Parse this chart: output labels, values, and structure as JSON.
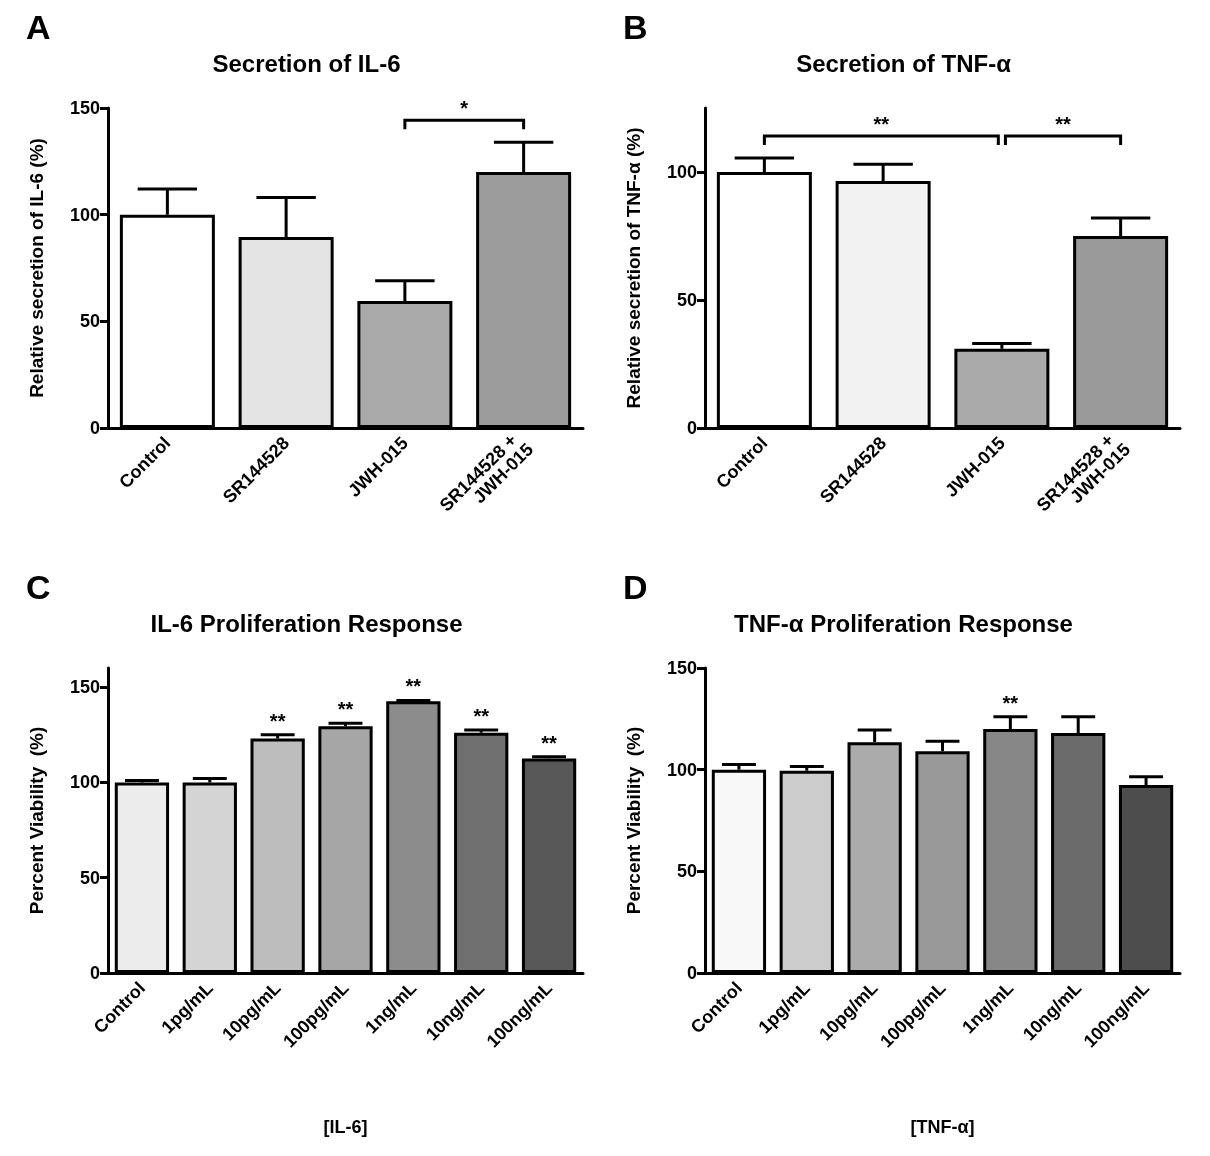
{
  "chart_data": [
    {
      "type": "bar",
      "title": "Secretion of IL-6",
      "ylabel": "Relative secretion of IL-6 (%)",
      "categories": [
        "Control",
        "SR144528",
        "JWH-015",
        "SR144528 + JWH-015"
      ],
      "values": [
        100,
        89.5,
        59.5,
        120
      ],
      "colors": [
        "#ffffff",
        "#e4e4e4",
        "#aaaaaa",
        "#9c9c9c"
      ],
      "errors": [
        [
          100,
          112
        ],
        [
          89.5,
          108
        ],
        [
          59.5,
          69
        ],
        [
          120,
          134
        ]
      ],
      "ylim": [
        0,
        150
      ],
      "yticks": [
        0,
        50,
        100,
        150
      ],
      "annotations": [
        "A",
        "*"
      ]
    },
    {
      "type": "bar",
      "title": "Secretion of TNF-α",
      "ylabel": "Relative secretion of TNF-α (%)",
      "categories": [
        "Control",
        "SR144528",
        "JWH-015",
        "SR144528 + JWH-015"
      ],
      "values": [
        100,
        96.5,
        31,
        75
      ],
      "colors": [
        "#ffffff",
        "#f2f2f2",
        "#aaaaaa",
        "#9a9a9a"
      ],
      "errors": [
        [
          100,
          105.5
        ],
        [
          96.5,
          103
        ],
        [
          31,
          33
        ],
        [
          75,
          82
        ]
      ],
      "ylim": [
        0,
        125
      ],
      "yticks": [
        0,
        50,
        100
      ],
      "annotations": [
        "B",
        "**",
        "**"
      ]
    },
    {
      "type": "bar",
      "title": "IL-6 Proliferation Response",
      "xlabel": "[IL-6]",
      "ylabel": "Percent Viability  (%)",
      "categories": [
        "Control",
        "1pg/mL",
        "10pg/mL",
        "100pg/mL",
        "1ng/mL",
        "10ng/mL",
        "100ng/mL"
      ],
      "values": [
        100,
        100,
        123,
        129.5,
        142.5,
        126,
        112.5
      ],
      "colors": [
        "#ececec",
        "#d4d4d4",
        "#bdbdbd",
        "#a6a6a6",
        "#8c8c8c",
        "#707070",
        "#575757"
      ],
      "errors": [
        [
          100,
          101
        ],
        [
          100,
          102
        ],
        [
          123,
          125
        ],
        [
          129.5,
          131
        ],
        [
          142.5,
          143
        ],
        [
          126,
          127.5
        ],
        [
          112.5,
          113.5
        ]
      ],
      "ylim": [
        0,
        160
      ],
      "yticks": [
        0,
        50,
        100,
        150
      ],
      "annotations": [
        "C",
        {
          "text": "**",
          "x": "10pg/mL",
          "y": 125
        },
        {
          "text": "**",
          "x": "100pg/mL",
          "y": 131
        },
        {
          "text": "**",
          "x": "1ng/mL",
          "y": 143
        },
        {
          "text": "**",
          "x": "10ng/mL",
          "y": 127.5
        },
        {
          "text": "**",
          "x": "100ng/mL",
          "y": 113.5
        }
      ]
    },
    {
      "type": "bar",
      "title": "TNF-α Proliferation Response",
      "xlabel": "[TNF-α]",
      "ylabel": "Percent Viability  (%)",
      "categories": [
        "Control",
        "1pg/mL",
        "10pg/mL",
        "100pg/mL",
        "1ng/mL",
        "10ng/mL",
        "100ng/mL"
      ],
      "values": [
        100,
        99.5,
        113.5,
        109,
        120,
        118,
        92.5
      ],
      "colors": [
        "#f8f8f8",
        "#cccccc",
        "#ababab",
        "#999999",
        "#878787",
        "#6b6b6b",
        "#4d4d4d"
      ],
      "errors": [
        [
          100,
          102.5
        ],
        [
          99.5,
          101.5
        ],
        [
          113.5,
          119.5
        ],
        [
          109,
          114
        ],
        [
          120,
          126
        ],
        [
          118,
          126
        ],
        [
          92.5,
          96.5
        ]
      ],
      "ylim": [
        0,
        150
      ],
      "yticks": [
        0,
        50,
        100,
        150
      ],
      "annotations": [
        "D",
        {
          "text": "**",
          "x": "1ng/mL",
          "y": 126
        }
      ]
    }
  ]
}
